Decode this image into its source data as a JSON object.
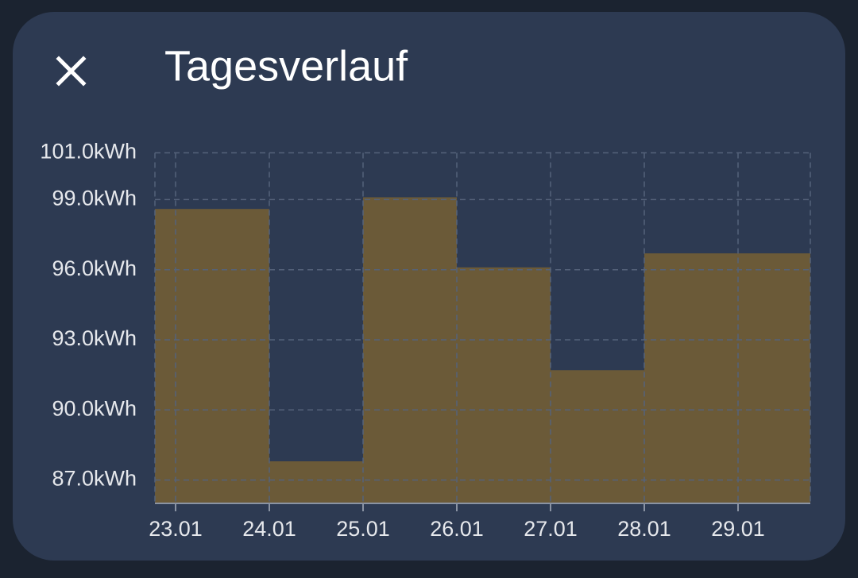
{
  "dialog": {
    "title": "Tagesverlauf"
  },
  "chart_data": {
    "type": "step",
    "categories": [
      "23.01",
      "24.01",
      "25.01",
      "26.01",
      "27.01",
      "28.01",
      "29.01"
    ],
    "values": [
      98.6,
      87.8,
      99.1,
      96.1,
      91.7,
      96.7,
      96.7
    ],
    "color": "#6b5a38",
    "ylim": [
      86,
      101
    ],
    "yticks": [
      {
        "value": 87,
        "label": "87.0kWh"
      },
      {
        "value": 90,
        "label": "90.0kWh"
      },
      {
        "value": 93,
        "label": "93.0kWh"
      },
      {
        "value": 96,
        "label": "96.0kWh"
      },
      {
        "value": 99,
        "label": "99.0kWh"
      },
      {
        "value": 101,
        "label": "101.0kWh"
      }
    ],
    "grid": true
  }
}
